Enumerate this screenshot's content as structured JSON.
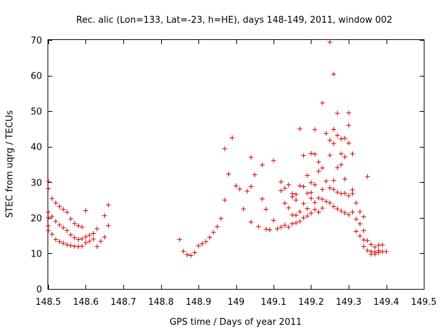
{
  "chart_data": {
    "type": "scatter",
    "title": "Rec. alic (Lon=133, Lat=-23, h=HE), days 148-149, 2011, window 002",
    "xlabel": "GPS time / Days of year 2011",
    "ylabel": "STEC from uqrg / TECUs",
    "xlim": [
      148.5,
      149.5
    ],
    "ylim": [
      0,
      70
    ],
    "xticks": [
      148.5,
      148.6,
      148.7,
      148.8,
      148.9,
      149.0,
      149.1,
      149.2,
      149.3,
      149.4,
      149.5
    ],
    "xtick_labels": [
      "148.5",
      "148.6",
      "148.7",
      "148.8",
      "148.9",
      "149",
      "149.1",
      "149.2",
      "149.3",
      "149.4",
      "149.5"
    ],
    "yticks": [
      0,
      10,
      20,
      30,
      40,
      50,
      60,
      70
    ],
    "ytick_labels": [
      "0",
      "10",
      "20",
      "30",
      "40",
      "50",
      "60",
      "70"
    ],
    "grid": false,
    "marker": "plus",
    "color": "#cc0000",
    "points": [
      [
        148.5,
        30.3
      ],
      [
        148.5,
        28.2
      ],
      [
        148.5,
        21.6
      ],
      [
        148.5,
        20.0
      ],
      [
        148.5,
        17.7
      ],
      [
        148.5,
        16.4
      ],
      [
        148.51,
        25.4
      ],
      [
        148.51,
        20.4
      ],
      [
        148.51,
        15.4
      ],
      [
        148.52,
        24.2
      ],
      [
        148.52,
        19.0
      ],
      [
        148.52,
        13.9
      ],
      [
        148.53,
        23.2
      ],
      [
        148.53,
        18.0
      ],
      [
        148.53,
        13.3
      ],
      [
        148.54,
        22.4
      ],
      [
        148.54,
        17.2
      ],
      [
        148.54,
        12.9
      ],
      [
        148.55,
        21.6
      ],
      [
        148.55,
        16.4
      ],
      [
        148.55,
        12.4
      ],
      [
        148.56,
        19.7
      ],
      [
        148.56,
        15.2
      ],
      [
        148.56,
        12.2
      ],
      [
        148.57,
        18.4
      ],
      [
        148.57,
        14.4
      ],
      [
        148.57,
        12.0
      ],
      [
        148.58,
        17.8
      ],
      [
        148.58,
        13.9
      ],
      [
        148.58,
        11.9
      ],
      [
        148.59,
        17.4
      ],
      [
        148.59,
        14.1
      ],
      [
        148.59,
        12.0
      ],
      [
        148.6,
        22.0
      ],
      [
        148.6,
        14.6
      ],
      [
        148.6,
        13.0
      ],
      [
        148.61,
        15.1
      ],
      [
        148.61,
        13.4
      ],
      [
        148.62,
        15.6
      ],
      [
        148.62,
        14.0
      ],
      [
        148.63,
        16.9
      ],
      [
        148.63,
        11.9
      ],
      [
        148.64,
        13.4
      ],
      [
        148.65,
        20.6
      ],
      [
        148.65,
        14.6
      ],
      [
        148.66,
        23.6
      ],
      [
        148.66,
        17.8
      ],
      [
        148.85,
        13.9
      ],
      [
        148.86,
        10.6
      ],
      [
        148.87,
        9.6
      ],
      [
        148.88,
        9.4
      ],
      [
        148.89,
        10.2
      ],
      [
        148.9,
        12.1
      ],
      [
        148.91,
        12.7
      ],
      [
        148.92,
        13.3
      ],
      [
        148.93,
        14.5
      ],
      [
        148.94,
        15.9
      ],
      [
        148.95,
        17.5
      ],
      [
        148.96,
        19.8
      ],
      [
        148.97,
        25.0
      ],
      [
        148.97,
        39.4
      ],
      [
        148.98,
        32.3
      ],
      [
        148.99,
        42.5
      ],
      [
        149.0,
        29.0
      ],
      [
        149.01,
        28.1
      ],
      [
        149.02,
        22.5
      ],
      [
        149.03,
        27.5
      ],
      [
        149.04,
        37.0
      ],
      [
        149.04,
        28.8
      ],
      [
        149.04,
        18.8
      ],
      [
        149.05,
        32.1
      ],
      [
        149.06,
        17.5
      ],
      [
        149.07,
        25.3
      ],
      [
        149.07,
        34.9
      ],
      [
        149.08,
        16.8
      ],
      [
        149.08,
        22.4
      ],
      [
        149.09,
        16.6
      ],
      [
        149.1,
        36.1
      ],
      [
        149.1,
        19.3
      ],
      [
        149.11,
        16.9
      ],
      [
        149.12,
        27.6
      ],
      [
        149.12,
        30.1
      ],
      [
        149.12,
        17.4
      ],
      [
        149.13,
        28.3
      ],
      [
        149.13,
        24.1
      ],
      [
        149.13,
        17.9
      ],
      [
        149.14,
        29.3
      ],
      [
        149.14,
        22.8
      ],
      [
        149.14,
        17.4
      ],
      [
        149.15,
        26.8
      ],
      [
        149.15,
        25.9
      ],
      [
        149.15,
        20.8
      ],
      [
        149.15,
        18.3
      ],
      [
        149.16,
        26.6
      ],
      [
        149.16,
        25.0
      ],
      [
        149.16,
        20.7
      ],
      [
        149.16,
        18.6
      ],
      [
        149.17,
        45.0
      ],
      [
        149.17,
        29.0
      ],
      [
        149.17,
        21.7
      ],
      [
        149.17,
        19.0
      ],
      [
        149.18,
        37.5
      ],
      [
        149.18,
        28.8
      ],
      [
        149.18,
        24.0
      ],
      [
        149.18,
        20.0
      ],
      [
        149.19,
        31.9
      ],
      [
        149.19,
        26.9
      ],
      [
        149.19,
        22.6
      ],
      [
        149.19,
        20.5
      ],
      [
        149.2,
        38.1
      ],
      [
        149.2,
        29.9
      ],
      [
        149.2,
        27.1
      ],
      [
        149.2,
        25.5
      ],
      [
        149.2,
        21.3
      ],
      [
        149.21,
        44.8
      ],
      [
        149.21,
        37.9
      ],
      [
        149.21,
        29.3
      ],
      [
        149.21,
        24.3
      ],
      [
        149.21,
        22.3
      ],
      [
        149.22,
        35.7
      ],
      [
        149.22,
        33.1
      ],
      [
        149.22,
        25.6
      ],
      [
        149.22,
        21.6
      ],
      [
        149.23,
        52.3
      ],
      [
        149.23,
        34.0
      ],
      [
        149.23,
        28.0
      ],
      [
        149.23,
        25.2
      ],
      [
        149.23,
        22.7
      ],
      [
        149.24,
        43.7
      ],
      [
        149.24,
        30.3
      ],
      [
        149.24,
        24.6
      ],
      [
        149.25,
        69.4
      ],
      [
        149.25,
        41.8
      ],
      [
        149.25,
        37.6
      ],
      [
        149.25,
        28.4
      ],
      [
        149.25,
        24.2
      ],
      [
        149.26,
        60.4
      ],
      [
        149.26,
        44.9
      ],
      [
        149.26,
        40.9
      ],
      [
        149.26,
        30.5
      ],
      [
        149.26,
        28.0
      ],
      [
        149.26,
        23.2
      ],
      [
        149.27,
        49.4
      ],
      [
        149.27,
        43.2
      ],
      [
        149.27,
        34.1
      ],
      [
        149.27,
        27.2
      ],
      [
        149.27,
        22.5
      ],
      [
        149.28,
        42.2
      ],
      [
        149.28,
        38.0
      ],
      [
        149.28,
        34.9
      ],
      [
        149.28,
        26.8
      ],
      [
        149.28,
        21.9
      ],
      [
        149.29,
        42.4
      ],
      [
        149.29,
        37.1
      ],
      [
        149.29,
        30.9
      ],
      [
        149.29,
        26.9
      ],
      [
        149.29,
        21.4
      ],
      [
        149.3,
        49.5
      ],
      [
        149.3,
        46.0
      ],
      [
        149.3,
        41.0
      ],
      [
        149.3,
        26.2
      ],
      [
        149.3,
        20.9
      ],
      [
        149.31,
        38.0
      ],
      [
        149.31,
        27.9
      ],
      [
        149.31,
        26.8
      ],
      [
        149.31,
        21.6
      ],
      [
        149.32,
        24.2
      ],
      [
        149.32,
        19.6
      ],
      [
        149.32,
        16.2
      ],
      [
        149.33,
        21.7
      ],
      [
        149.33,
        18.3
      ],
      [
        149.33,
        14.9
      ],
      [
        149.34,
        20.3
      ],
      [
        149.34,
        16.4
      ],
      [
        149.34,
        13.8
      ],
      [
        149.34,
        11.9
      ],
      [
        149.35,
        31.6
      ],
      [
        149.35,
        13.6
      ],
      [
        149.35,
        10.8
      ],
      [
        149.36,
        12.5
      ],
      [
        149.36,
        10.5
      ],
      [
        149.36,
        9.8
      ],
      [
        149.37,
        11.8
      ],
      [
        149.37,
        10.4
      ],
      [
        149.37,
        9.8
      ],
      [
        149.38,
        12.3
      ],
      [
        149.38,
        10.8
      ],
      [
        149.38,
        10.2
      ],
      [
        149.39,
        12.4
      ],
      [
        149.39,
        10.5
      ],
      [
        149.4,
        10.5
      ]
    ]
  }
}
